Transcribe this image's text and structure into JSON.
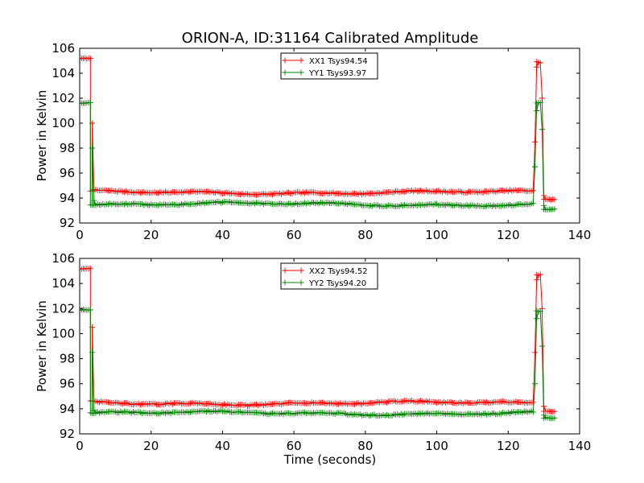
{
  "chart_data": [
    {
      "type": "line",
      "title": "ORION-A, ID:31164 Calibrated Amplitude",
      "xlabel": "",
      "ylabel": "Power in Kelvin",
      "xlim": [
        0,
        140
      ],
      "ylim": [
        92,
        106
      ],
      "xticks": [
        "0",
        "20",
        "40",
        "60",
        "80",
        "100",
        "120",
        "140"
      ],
      "yticks": [
        "92",
        "94",
        "96",
        "98",
        "100",
        "102",
        "104",
        "106"
      ],
      "legend_position": "upper-center",
      "x_start": 0,
      "x_step": 0.5,
      "series": [
        {
          "name": "XX1 Tsys94.54",
          "color": "#ff0000",
          "marker": "+",
          "segments": [
            {
              "from": 0,
              "to": 3,
              "level": 105.1,
              "jitter": 0.07
            },
            {
              "from": 3,
              "to": 127,
              "level": 94.45,
              "jitter": 0.12
            },
            {
              "from": 128,
              "to": 129,
              "level": 104.8,
              "jitter": 0.1
            },
            {
              "from": 130,
              "to": 133,
              "level": 93.85,
              "jitter": 0.08
            }
          ],
          "transitions": [
            [
              3.5,
              100.0
            ],
            [
              4,
              94.6
            ],
            [
              127.5,
              98.5
            ],
            [
              128,
              104.5
            ],
            [
              129.5,
              102.0
            ],
            [
              130,
              94.2
            ]
          ]
        },
        {
          "name": "YY1 Tsys93.97",
          "color": "#008000",
          "marker": "+",
          "segments": [
            {
              "from": 0,
              "to": 3,
              "level": 101.7,
              "jitter": 0.08
            },
            {
              "from": 3,
              "to": 127,
              "level": 93.5,
              "jitter": 0.12
            },
            {
              "from": 128,
              "to": 129,
              "level": 101.6,
              "jitter": 0.08
            },
            {
              "from": 130,
              "to": 133,
              "level": 93.05,
              "jitter": 0.06
            }
          ],
          "transitions": [
            [
              3.5,
              98.0
            ],
            [
              4,
              93.8
            ],
            [
              127.5,
              96.5
            ],
            [
              128,
              101.0
            ],
            [
              129.5,
              99.5
            ],
            [
              130,
              93.4
            ]
          ]
        }
      ]
    },
    {
      "type": "line",
      "title": "",
      "xlabel": "Time (seconds)",
      "ylabel": "Power in Kelvin",
      "xlim": [
        0,
        140
      ],
      "ylim": [
        92,
        106
      ],
      "xticks": [
        "0",
        "20",
        "40",
        "60",
        "80",
        "100",
        "120",
        "140"
      ],
      "yticks": [
        "92",
        "94",
        "96",
        "98",
        "100",
        "102",
        "104",
        "106"
      ],
      "legend_position": "upper-center",
      "x_start": 0,
      "x_step": 0.5,
      "series": [
        {
          "name": "XX2 Tsys94.52",
          "color": "#ff0000",
          "marker": "+",
          "segments": [
            {
              "from": 0,
              "to": 3,
              "level": 105.1,
              "jitter": 0.07
            },
            {
              "from": 3,
              "to": 127,
              "level": 94.45,
              "jitter": 0.12
            },
            {
              "from": 128,
              "to": 129,
              "level": 104.7,
              "jitter": 0.1
            },
            {
              "from": 130,
              "to": 133,
              "level": 93.85,
              "jitter": 0.08
            }
          ],
          "transitions": [
            [
              3.5,
              100.5
            ],
            [
              4,
              94.6
            ],
            [
              127.5,
              98.5
            ],
            [
              128,
              104.3
            ],
            [
              129.5,
              102.0
            ],
            [
              130,
              94.2
            ]
          ]
        },
        {
          "name": "YY2 Tsys94.20",
          "color": "#008000",
          "marker": "+",
          "segments": [
            {
              "from": 0,
              "to": 3,
              "level": 101.9,
              "jitter": 0.06
            },
            {
              "from": 3,
              "to": 127,
              "level": 93.65,
              "jitter": 0.12
            },
            {
              "from": 128,
              "to": 129,
              "level": 101.7,
              "jitter": 0.08
            },
            {
              "from": 130,
              "to": 133,
              "level": 93.2,
              "jitter": 0.06
            }
          ],
          "transitions": [
            [
              3.5,
              98.5
            ],
            [
              4,
              93.9
            ],
            [
              127.5,
              96.0
            ],
            [
              128,
              101.2
            ],
            [
              129.5,
              99.0
            ],
            [
              130,
              93.5
            ]
          ]
        }
      ]
    }
  ]
}
